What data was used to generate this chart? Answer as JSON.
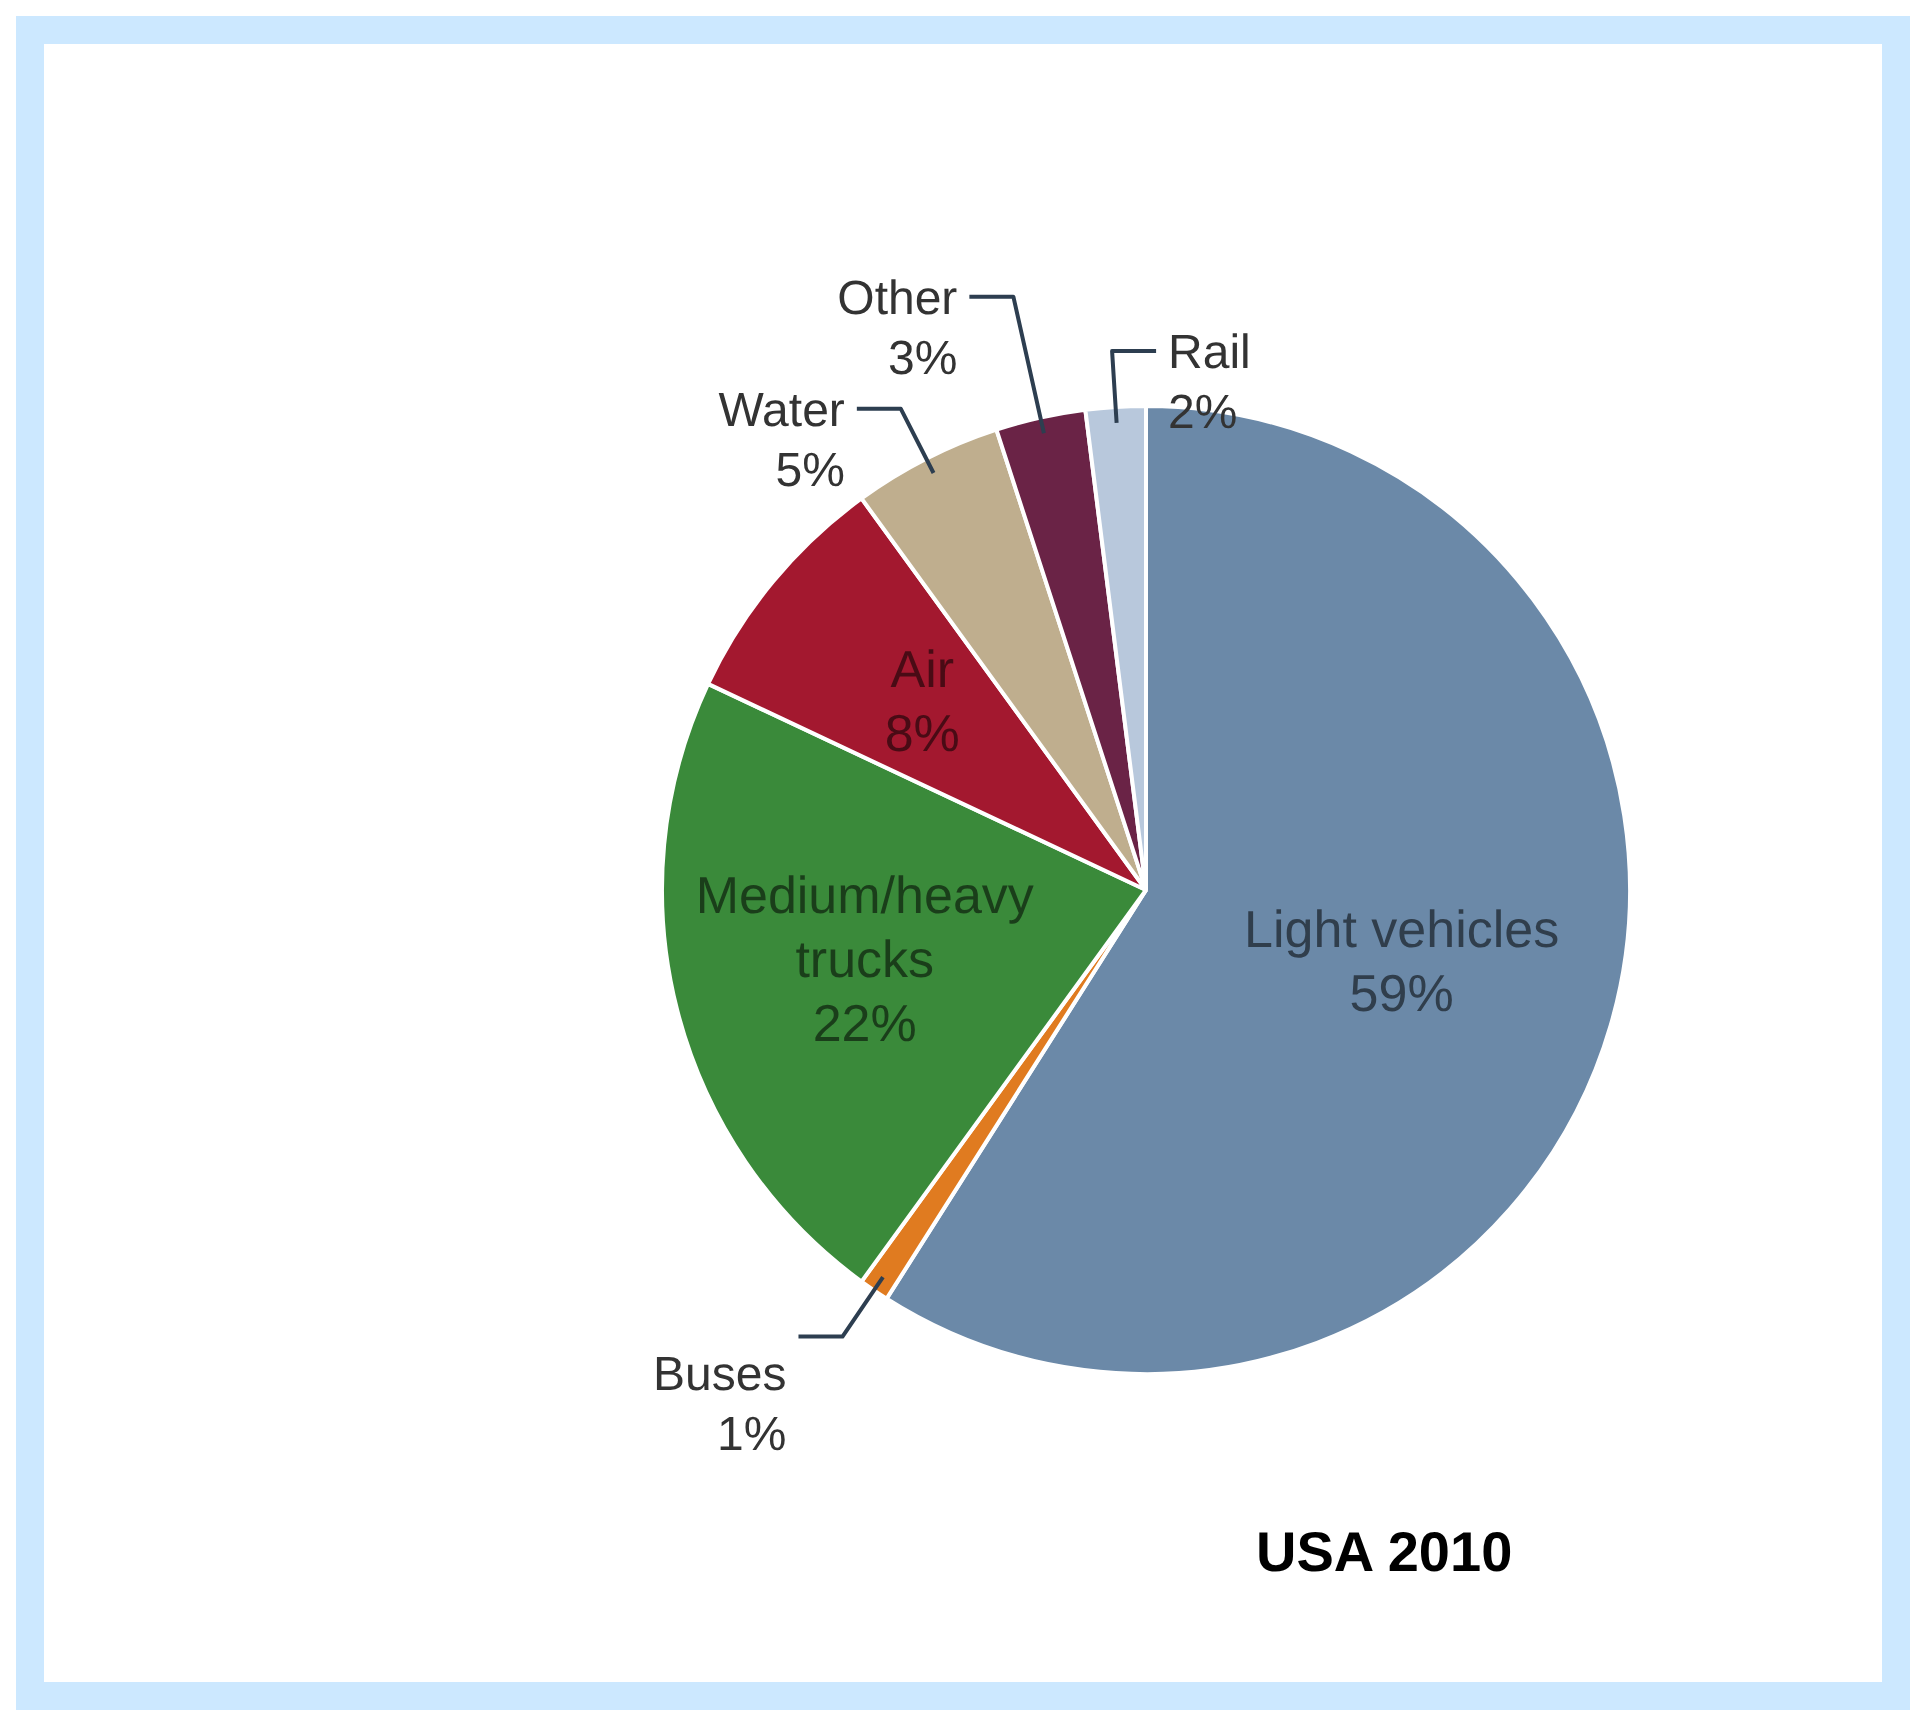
{
  "chart_data": {
    "type": "pie",
    "categories": [
      "Light vehicles",
      "Buses",
      "Medium/heavy trucks",
      "Air",
      "Water",
      "Other",
      "Rail"
    ],
    "values": [
      59,
      1,
      22,
      8,
      5,
      3,
      2
    ],
    "colors": [
      "#6b89a8",
      "#e07b20",
      "#3a8a3a",
      "#a3182f",
      "#bfae8e",
      "#6a2346",
      "#b8c8dc"
    ],
    "value_labels": [
      "59%",
      "1%",
      "22%",
      "8%",
      "5%",
      "3%",
      "2%"
    ],
    "legend": false,
    "annotations": [
      "USA 2010"
    ]
  }
}
